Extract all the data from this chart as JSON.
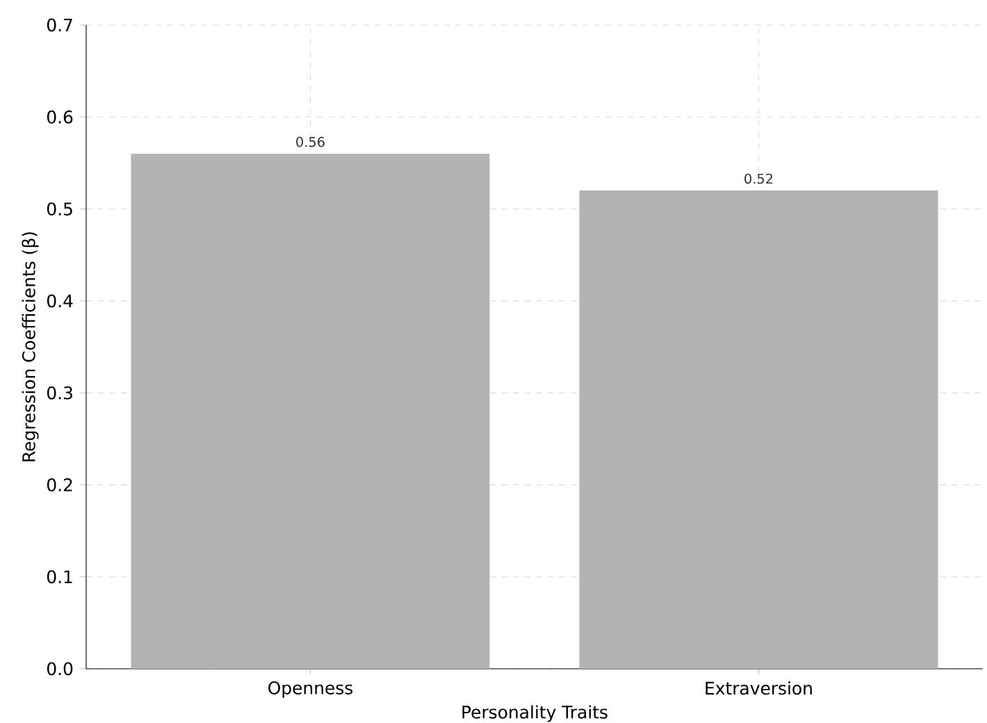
{
  "chart_data": {
    "type": "bar",
    "xlabel": "Personality Traits",
    "ylabel": "Regression Coefficients (β)",
    "categories": [
      "Openness",
      "Extraversion"
    ],
    "values": [
      0.56,
      0.52
    ],
    "color": "#b3b3b3",
    "data_labels": true,
    "ylim": [
      0,
      0.7
    ],
    "yticks": [
      {
        "value": 0,
        "label": "0.0"
      },
      0.1,
      0.2,
      0.3,
      0.4,
      0.5,
      0.6,
      0.7
    ],
    "grid": true
  }
}
